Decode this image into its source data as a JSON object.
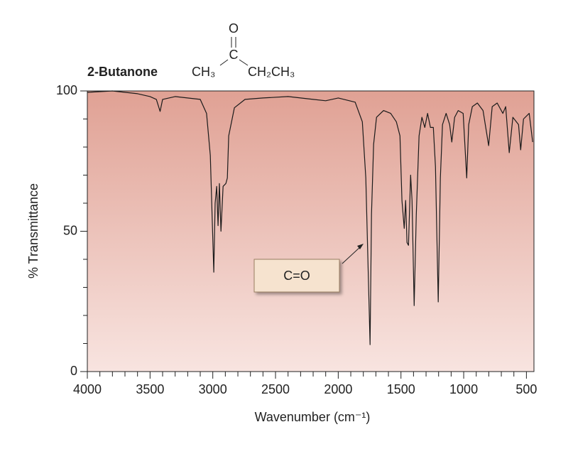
{
  "chart_data": {
    "type": "line",
    "title": "2-Butanone",
    "structure": {
      "left": "CH₃",
      "center": "C",
      "top": "O",
      "right": "CH₂CH₃"
    },
    "xlabel": "Wavenumber (cm⁻¹)",
    "ylabel": "% Transmittance",
    "annotation": "C=O",
    "x": [
      4000,
      3800,
      3600,
      3500,
      3450,
      3420,
      3400,
      3300,
      3100,
      3050,
      3020,
      2992,
      2981,
      2969,
      2958,
      2947,
      2935,
      2918,
      2896,
      2884,
      2873,
      2828,
      2743,
      2600,
      2400,
      2200,
      2100,
      2000,
      1865,
      1808,
      1780,
      1746,
      1735,
      1718,
      1695,
      1639,
      1582,
      1537,
      1508,
      1492,
      1474,
      1463,
      1452,
      1440,
      1423,
      1412,
      1395,
      1378,
      1356,
      1333,
      1310,
      1288,
      1265,
      1242,
      1225,
      1203,
      1186,
      1169,
      1140,
      1112,
      1095,
      1072,
      1044,
      1004,
      976,
      960,
      931,
      891,
      846,
      801,
      773,
      733,
      688,
      665,
      637,
      608,
      563,
      546,
      523,
      478,
      450
    ],
    "values": [
      99.5,
      100,
      99,
      98,
      97,
      92.7,
      97,
      98,
      97,
      92,
      77,
      35.4,
      60,
      66,
      52,
      67,
      50,
      66,
      67,
      69,
      84,
      94,
      97,
      97.5,
      98,
      97,
      96.5,
      97.5,
      96,
      89,
      69,
      9.6,
      56,
      81,
      90.6,
      93,
      92,
      89,
      84,
      61,
      51,
      61,
      46,
      45,
      70,
      61,
      23.5,
      56,
      84,
      90.6,
      87,
      92,
      87,
      87,
      73,
      24.8,
      69,
      88,
      92,
      88,
      81.8,
      90.6,
      93,
      92,
      69,
      88,
      94.4,
      95.7,
      93,
      80.5,
      94.4,
      95.7,
      92,
      94.4,
      78,
      90.6,
      88,
      79,
      90,
      92,
      81.8
    ],
    "color": "#1a1a1a",
    "xlim": [
      4000,
      440
    ],
    "xticks": [
      4000,
      3500,
      3000,
      2500,
      2000,
      1500,
      1000,
      500
    ],
    "xticks_minor": [
      3900,
      3800,
      3700,
      3600,
      3400,
      3300,
      3200,
      3100,
      2900,
      2800,
      2700,
      2600,
      2400,
      2300,
      2200,
      2100,
      1900,
      1800,
      1700,
      1600,
      1400,
      1300,
      1200,
      1100,
      900,
      800,
      700,
      600
    ],
    "ylim": [
      0,
      100
    ],
    "yticks": [
      0,
      50,
      100
    ],
    "yticks_minor": [
      10,
      20,
      30,
      40,
      60,
      70,
      80,
      90
    ]
  }
}
